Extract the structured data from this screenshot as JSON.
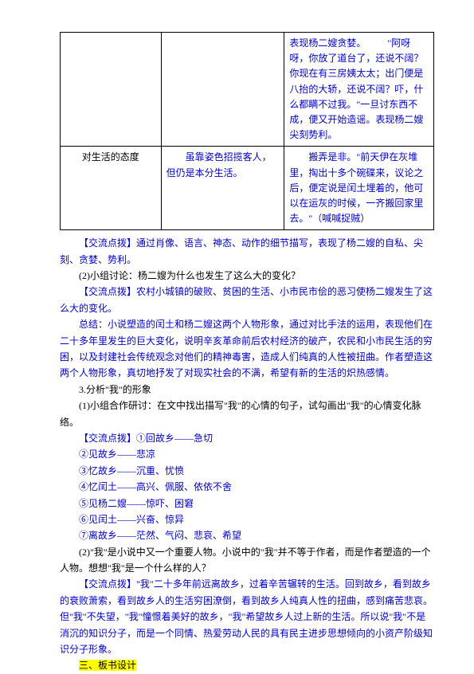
{
  "table": {
    "row1": {
      "c1": "",
      "c2": "",
      "c3": "表现杨二嫂贪婪。\n　　\"阿呀呀，你放了道台了，还说不阔？你现在有三房姨太太；出门便是八抬的大轿，还说不阔？吓，什么都瞒不过我。\"一旦讨东西不成，便又开始造谣。表现杨二嫂尖刻势利。"
    },
    "row2": {
      "c1": "对生活的态度",
      "c2": "　　虽靠姿色招揽客人，但仍是本分生活。",
      "c3": "　　搬弄是非。\"前天伊在灰堆里，掏出十多个碗碟来，议论之后，便定说是闰土埋着的，他可以在运灰的时候，一齐搬回家里去。\"（喊喊捉贼）"
    }
  },
  "paragraphs": {
    "p1a": "【交流点拨】",
    "p1b": "通过肖像、语言、神态、动作的细节描写，表现了杨二嫂的自私、尖刻、贪婪、势利。",
    "p2": "(2)小组讨论：杨二嫂为什么也发生了这么大的变化？",
    "p3a": "【交流点拨】",
    "p3b": "农村小城镇的破败、贫困的生活、小市民市侩的恶习使杨二嫂发生了这么大的变化。",
    "p4a": "总结：",
    "p4b": "小说塑造的闰土和杨二嫂这两个人物形象，通过对比手法的运用，表现他们在二十多年里发生的巨大变化，说明辛亥革命前后农村经济的破产，农民和小市民生活的穷困，以及封建社会传统观念对他们的精神毒害，造成人们纯真的人性被扭曲。作者塑造这两个人物形象，真切地抒发了对现实社会的不满，希望有新的生活的炽热感情。",
    "p5": "3.分析\"我\"的形象",
    "p6": "(1)小组合作研讨：在文中找出描写\"我\"的心情的句子，试勾画出\"我\"的心情变化脉络。",
    "p7": "【交流点拨】①回故乡——急切",
    "p8": "②见故乡——悲凉",
    "p9": "③忆故乡——沉重、忧愤",
    "p10": "④忆闰土——高兴、佩服、依依不舍",
    "p11": "⑤见杨二嫂——惊吓、困窘",
    "p12": "⑥见闰土——兴奋、惊异",
    "p13": "⑦离故乡——茫然、气闷、悲哀、希望",
    "p14": "(2)\"我\"是小说中又一个重要人物。小说中的\"我\"并不等于作者，而是作者塑造的一个人物。想想\"我\"是一个什么样的人？",
    "p15a": "【交流点拨】",
    "p15b": "\"我\"二十多年前远离故乡，过着辛苦辗转的生活。回到故乡，看到故乡的衰败萧索，看到故乡人的生活穷困潦倒，看到故乡人纯真人性的扭曲，感到痛苦悲哀。但\"我\"不失望，\"我\"憧憬着美好的故乡，\"我\"希望故乡人过上新的生活。所以说\"我\"不是消沉的知识分子，而是一个同情、热爱劳动人民的具有民主进步思想倾向的小资产阶级知识分子形象。",
    "p16": "三、板书设计"
  },
  "colors": {
    "blue": "#0000c8",
    "highlight": "#ffff00",
    "text": "#000000",
    "bg": "#ffffff",
    "border": "#000000"
  },
  "fonts": {
    "body_size": 12,
    "line_height": 1.7
  }
}
